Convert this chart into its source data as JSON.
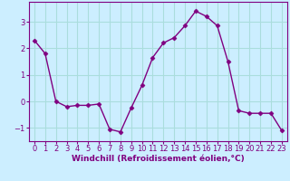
{
  "x": [
    0,
    1,
    2,
    3,
    4,
    5,
    6,
    7,
    8,
    9,
    10,
    11,
    12,
    13,
    14,
    15,
    16,
    17,
    18,
    19,
    20,
    21,
    22,
    23
  ],
  "y": [
    2.3,
    1.8,
    0.0,
    -0.2,
    -0.15,
    -0.15,
    -0.1,
    -1.05,
    -1.15,
    -0.25,
    0.6,
    1.65,
    2.2,
    2.4,
    2.85,
    3.4,
    3.2,
    2.85,
    1.5,
    -0.35,
    -0.45,
    -0.45,
    -0.45,
    -1.1
  ],
  "line_color": "#800080",
  "marker": "D",
  "marker_size": 2.5,
  "bg_color": "#cceeff",
  "grid_color": "#aadddd",
  "xlabel": "Windchill (Refroidissement éolien,°C)",
  "xlim": [
    -0.5,
    23.5
  ],
  "ylim": [
    -1.5,
    3.75
  ],
  "yticks": [
    -1,
    0,
    1,
    2,
    3
  ],
  "xticks": [
    0,
    1,
    2,
    3,
    4,
    5,
    6,
    7,
    8,
    9,
    10,
    11,
    12,
    13,
    14,
    15,
    16,
    17,
    18,
    19,
    20,
    21,
    22,
    23
  ],
  "label_fontsize": 6.5,
  "tick_fontsize": 6,
  "linewidth": 1.0
}
